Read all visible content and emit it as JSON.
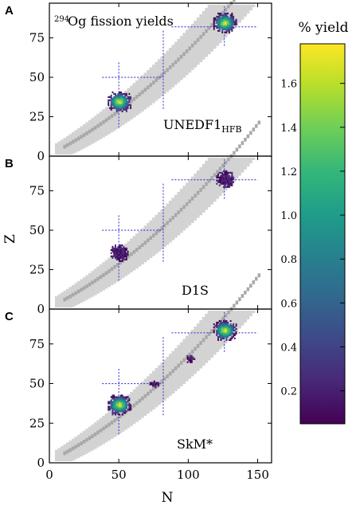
{
  "figure": {
    "title_sup": "294",
    "title_main": "Og fission yields",
    "xlabel": "N",
    "ylabel": "Z"
  },
  "colorbar": {
    "title": "% yield",
    "ticks": [
      "0.2",
      "0.4",
      "0.6",
      "0.8",
      "1.0",
      "1.2",
      "1.4",
      "1.6"
    ],
    "tick_values": [
      0.2,
      0.4,
      0.6,
      0.8,
      1.0,
      1.2,
      1.4,
      1.6
    ],
    "range": [
      0.05,
      1.78
    ],
    "colors": [
      "#440154",
      "#482878",
      "#3e4989",
      "#31688e",
      "#26828e",
      "#1f9e89",
      "#35b779",
      "#6ece58",
      "#b5de2b",
      "#fde725"
    ]
  },
  "chart_data": [
    {
      "type": "heatmap",
      "panel": "A",
      "label_main": "UNEDF1",
      "label_sub": "HFB",
      "xlim": [
        0,
        160
      ],
      "ylim": [
        0,
        97
      ],
      "xticks": [
        0,
        50,
        100,
        150
      ],
      "yticks": [
        0,
        25,
        50,
        75
      ],
      "ytick_labels": [
        "0",
        "25",
        "50",
        "75"
      ],
      "clusters": [
        {
          "x": 50,
          "y": 34,
          "peak": 1.75
        },
        {
          "x": 126,
          "y": 84,
          "peak": 1.75
        }
      ]
    },
    {
      "type": "heatmap",
      "panel": "B",
      "label_main": "D1S",
      "label_sub": "",
      "xlim": [
        0,
        160
      ],
      "ylim": [
        0,
        97
      ],
      "xticks": [
        0,
        50,
        100,
        150
      ],
      "yticks": [
        0,
        25,
        50,
        75
      ],
      "ytick_labels": [
        "0",
        "25",
        "50",
        "75"
      ],
      "clusters": [
        {
          "x": 50,
          "y": 35,
          "peak": 0.3
        },
        {
          "x": 126,
          "y": 82,
          "peak": 0.3
        }
      ]
    },
    {
      "type": "heatmap",
      "panel": "C",
      "label_main": "SkM*",
      "label_sub": "",
      "xlim": [
        0,
        160
      ],
      "ylim": [
        0,
        97
      ],
      "xticks": [
        0,
        50,
        100,
        150
      ],
      "yticks": [
        0,
        25,
        50,
        75
      ],
      "ytick_labels": [
        "0",
        "25",
        "50",
        "75"
      ],
      "xtick_labels": [
        "0",
        "50",
        "100",
        "150"
      ],
      "clusters": [
        {
          "x": 50,
          "y": 36,
          "peak": 1.75
        },
        {
          "x": 126,
          "y": 83,
          "peak": 1.75
        },
        {
          "x": 75,
          "y": 49,
          "peak": 0.15
        },
        {
          "x": 101,
          "y": 65,
          "peak": 0.15
        }
      ]
    }
  ]
}
